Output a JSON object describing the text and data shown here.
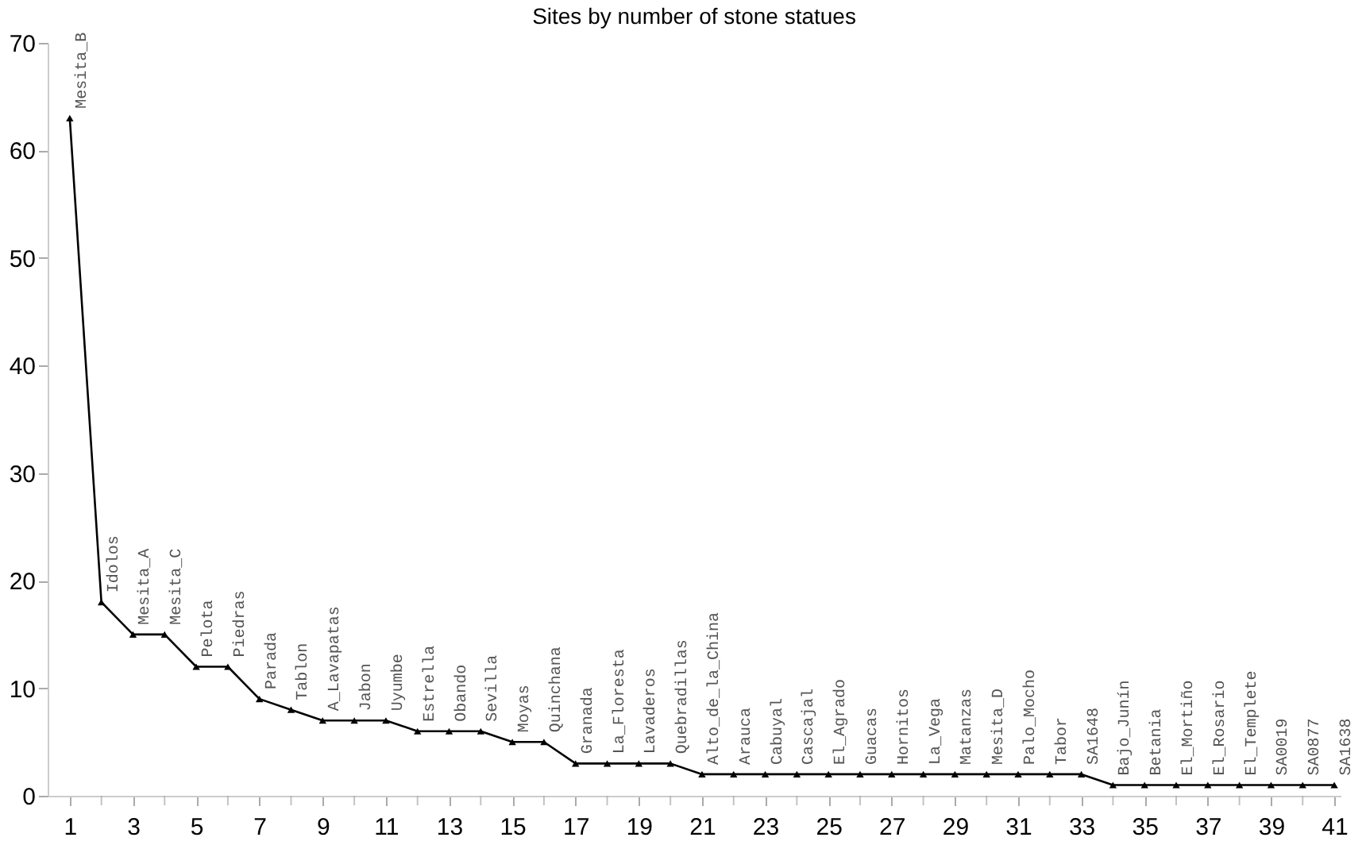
{
  "chart_data": {
    "type": "line",
    "title": "Sites by number of stone statues",
    "x": [
      1,
      2,
      3,
      4,
      5,
      6,
      7,
      8,
      9,
      10,
      11,
      12,
      13,
      14,
      15,
      16,
      17,
      18,
      19,
      20,
      21,
      22,
      23,
      24,
      25,
      26,
      27,
      28,
      29,
      30,
      31,
      32,
      33,
      34,
      35,
      36,
      37,
      38,
      39,
      40,
      41
    ],
    "series": [
      {
        "color": "#000000",
        "values": [
          63,
          18,
          15,
          15,
          12,
          12,
          9,
          8,
          7,
          7,
          7,
          6,
          6,
          6,
          5,
          5,
          3,
          3,
          3,
          3,
          2,
          2,
          2,
          2,
          2,
          2,
          2,
          2,
          2,
          2,
          2,
          2,
          2,
          1,
          1,
          1,
          1,
          1,
          1,
          1,
          1
        ]
      }
    ],
    "marker": "triangle",
    "line_style": "solid",
    "grid": false,
    "xlim": [
      0.3,
      41.2
    ],
    "ylim": [
      0,
      70
    ],
    "xticks": [
      1,
      {
        "value": 2,
        "label": null
      },
      3,
      {
        "value": 4,
        "label": null
      },
      5,
      {
        "value": 6,
        "label": null
      },
      7,
      {
        "value": 8,
        "label": null
      },
      9,
      {
        "value": 10,
        "label": null
      },
      11,
      {
        "value": 12,
        "label": null
      },
      13,
      {
        "value": 14,
        "label": null
      },
      15,
      {
        "value": 16,
        "label": null
      },
      17,
      {
        "value": 18,
        "label": null
      },
      19,
      {
        "value": 20,
        "label": null
      },
      21,
      {
        "value": 22,
        "label": null
      },
      23,
      {
        "value": 24,
        "label": null
      },
      25,
      {
        "value": 26,
        "label": null
      },
      27,
      {
        "value": 28,
        "label": null
      },
      29,
      {
        "value": 30,
        "label": null
      },
      31,
      {
        "value": 32,
        "label": null
      },
      33,
      {
        "value": 34,
        "label": null
      },
      35,
      {
        "value": 36,
        "label": null
      },
      37,
      {
        "value": 38,
        "label": null
      },
      39,
      {
        "value": 40,
        "label": null
      },
      41
    ],
    "yticks": [
      0,
      10,
      20,
      30,
      40,
      50,
      60,
      70
    ],
    "annotations": [
      {
        "text": "Mesita_B",
        "x": 1,
        "y": 63
      },
      {
        "text": "Idolos",
        "x": 2,
        "y": 18
      },
      {
        "text": "Mesita_A",
        "x": 3,
        "y": 15
      },
      {
        "text": "Mesita_C",
        "x": 4,
        "y": 15
      },
      {
        "text": "Pelota",
        "x": 5,
        "y": 12
      },
      {
        "text": "Piedras",
        "x": 6,
        "y": 12
      },
      {
        "text": "Parada",
        "x": 7,
        "y": 9
      },
      {
        "text": "Tablon",
        "x": 8,
        "y": 8
      },
      {
        "text": "A_Lavapatas",
        "x": 9,
        "y": 7
      },
      {
        "text": "Jabon",
        "x": 10,
        "y": 7
      },
      {
        "text": "Uyumbe",
        "x": 11,
        "y": 7
      },
      {
        "text": "Estrella",
        "x": 12,
        "y": 6
      },
      {
        "text": "Obando",
        "x": 13,
        "y": 6
      },
      {
        "text": "Sevilla",
        "x": 14,
        "y": 6
      },
      {
        "text": "Moyas",
        "x": 15,
        "y": 5
      },
      {
        "text": "Quinchana",
        "x": 16,
        "y": 5
      },
      {
        "text": "Granada",
        "x": 17,
        "y": 3
      },
      {
        "text": "La_Floresta",
        "x": 18,
        "y": 3
      },
      {
        "text": "Lavaderos",
        "x": 19,
        "y": 3
      },
      {
        "text": "Quebradillas",
        "x": 20,
        "y": 3
      },
      {
        "text": "Alto_de_la_China",
        "x": 21,
        "y": 2
      },
      {
        "text": "Arauca",
        "x": 22,
        "y": 2
      },
      {
        "text": "Cabuyal",
        "x": 23,
        "y": 2
      },
      {
        "text": "Cascajal",
        "x": 24,
        "y": 2
      },
      {
        "text": "El_Agrado",
        "x": 25,
        "y": 2
      },
      {
        "text": "Guacas",
        "x": 26,
        "y": 2
      },
      {
        "text": "Hornitos",
        "x": 27,
        "y": 2
      },
      {
        "text": "La_Vega",
        "x": 28,
        "y": 2
      },
      {
        "text": "Matanzas",
        "x": 29,
        "y": 2
      },
      {
        "text": "Mesita_D",
        "x": 30,
        "y": 2
      },
      {
        "text": "Palo_Mocho",
        "x": 31,
        "y": 2
      },
      {
        "text": "Tabor",
        "x": 32,
        "y": 2
      },
      {
        "text": "SA1648",
        "x": 33,
        "y": 2
      },
      {
        "text": "Bajo_Junín",
        "x": 34,
        "y": 1
      },
      {
        "text": "Betania",
        "x": 35,
        "y": 1
      },
      {
        "text": "El_Mortiño",
        "x": 36,
        "y": 1
      },
      {
        "text": "El_Rosario",
        "x": 37,
        "y": 1
      },
      {
        "text": "El_Templete",
        "x": 38,
        "y": 1
      },
      {
        "text": "SA0019",
        "x": 39,
        "y": 1
      },
      {
        "text": "SA0877",
        "x": 40,
        "y": 1
      },
      {
        "text": "SA1638",
        "x": 41,
        "y": 1
      }
    ]
  }
}
